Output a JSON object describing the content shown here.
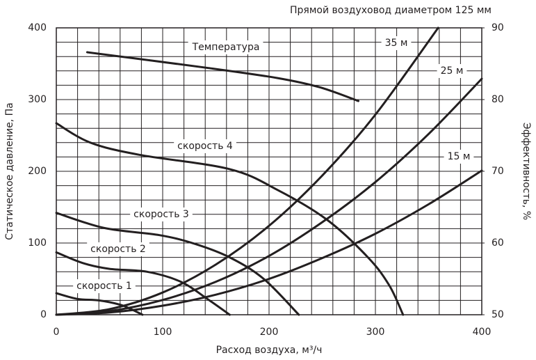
{
  "chart_data": {
    "type": "line",
    "title": "Прямой воздуховод диаметром 125 мм",
    "x_label": "Расход воздуха, м³/ч",
    "y_label": "Статическое давление, Па",
    "y2_label": "Эффективность, %",
    "xlim": [
      0,
      400
    ],
    "xticks": [
      0,
      100,
      200,
      300,
      400
    ],
    "ylim": [
      0,
      400
    ],
    "yticks": [
      0,
      100,
      200,
      300,
      400
    ],
    "y2lim": [
      50,
      90
    ],
    "y2ticks": [
      50,
      60,
      70,
      80,
      90
    ],
    "grid": true,
    "series": [
      {
        "name": "скорость 1",
        "color": "#231f20",
        "x": [
          0,
          20,
          40,
          60,
          70,
          81
        ],
        "values": [
          30,
          22,
          20,
          14,
          8,
          0
        ]
      },
      {
        "name": "скорость 2",
        "color": "#231f20",
        "x": [
          0,
          25,
          50,
          85,
          117,
          143,
          163
        ],
        "values": [
          87,
          72,
          64,
          60,
          46,
          21,
          0
        ]
      },
      {
        "name": "скорость 3",
        "color": "#231f20",
        "x": [
          0,
          45,
          97,
          130,
          163,
          195,
          228
        ],
        "values": [
          142,
          121,
          111,
          99,
          80,
          50,
          0
        ]
      },
      {
        "name": "скорость 4",
        "color": "#231f20",
        "x": [
          0,
          32,
          78,
          163,
          208,
          254,
          293,
          313,
          326
        ],
        "values": [
          267,
          240,
          223,
          203,
          174,
          133,
          80,
          41,
          0
        ]
      },
      {
        "name": "Температура",
        "color": "#231f20",
        "axis": "y2",
        "x": [
          29,
          143,
          208,
          248,
          284
        ],
        "values": [
          86.6,
          84.4,
          83.0,
          81.7,
          79.8
        ]
      },
      {
        "name": "35 м",
        "color": "#231f20",
        "x": [
          0,
          50,
          100,
          150,
          200,
          250,
          300,
          359
        ],
        "values": [
          0,
          7.8,
          31,
          70,
          124,
          194,
          279,
          400
        ]
      },
      {
        "name": "25 м",
        "color": "#231f20",
        "x": [
          0,
          50,
          100,
          150,
          200,
          250,
          300,
          350,
          400
        ],
        "values": [
          0,
          5.1,
          20.6,
          46,
          82,
          129,
          185,
          252,
          329
        ]
      },
      {
        "name": "15 м",
        "color": "#231f20",
        "x": [
          0,
          50,
          100,
          150,
          200,
          250,
          300,
          350,
          400
        ],
        "values": [
          0,
          3.1,
          12.6,
          28,
          50,
          79,
          113,
          154,
          201
        ]
      }
    ]
  }
}
